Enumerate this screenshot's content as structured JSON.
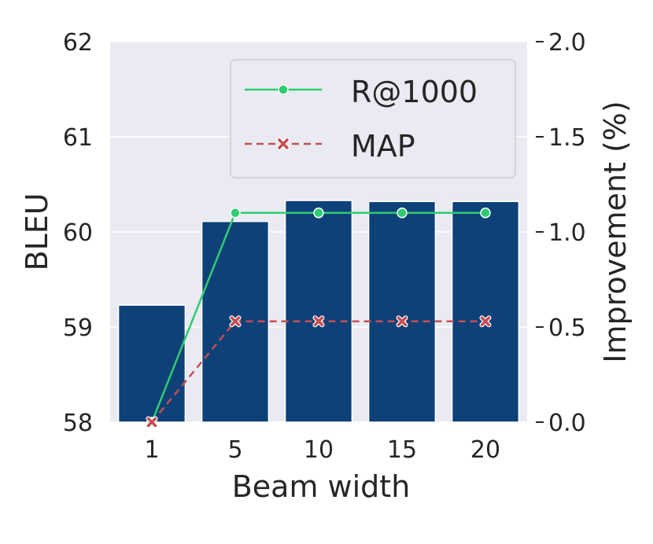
{
  "chart_data": {
    "type": "bar",
    "categories": [
      "1",
      "5",
      "10",
      "15",
      "20"
    ],
    "xlabel": "Beam width",
    "ylabel": "BLEU",
    "ylabel_right": "Improvement (%)",
    "ylim": [
      58,
      62
    ],
    "ylim_right": [
      0.0,
      2.0
    ],
    "yticks": [
      "58",
      "59",
      "60",
      "61",
      "62"
    ],
    "yticks_right": [
      "0.0",
      "0.5",
      "1.0",
      "1.5",
      "2.0"
    ],
    "grid": true,
    "legend_position": "top-right",
    "bar_color": "#0e4178",
    "values": [
      59.23,
      60.11,
      60.33,
      60.32,
      60.32
    ],
    "series": [
      {
        "name": "R@1000",
        "axis": "right",
        "style": "solid",
        "marker": "circle",
        "color": "#2ecc71",
        "values": [
          0.0,
          1.1,
          1.1,
          1.1,
          1.1
        ]
      },
      {
        "name": "MAP",
        "axis": "right",
        "style": "dashed",
        "marker": "x",
        "color": "#c44e52",
        "values": [
          0.0,
          0.53,
          0.53,
          0.53,
          0.53
        ]
      }
    ]
  }
}
